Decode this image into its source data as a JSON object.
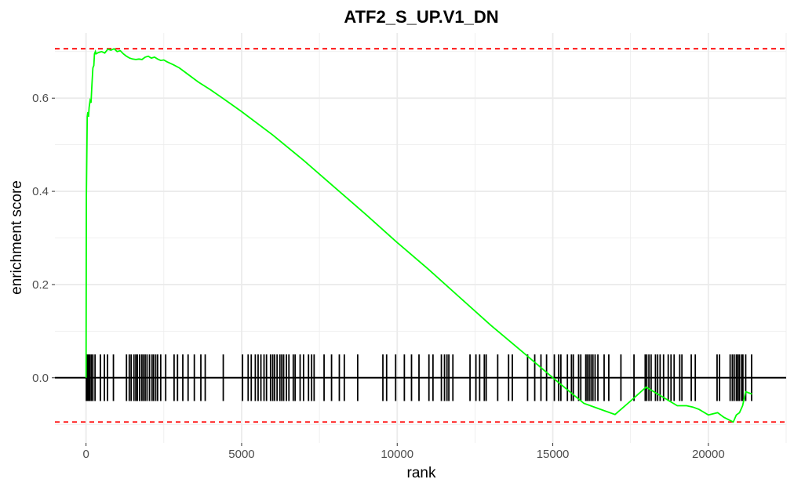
{
  "chart_data": {
    "type": "line",
    "title": "ATF2_S_UP.V1_DN",
    "xlabel": "rank",
    "ylabel": "enrichment score",
    "xlim": [
      -1000,
      22500
    ],
    "ylim": [
      -0.14,
      0.74
    ],
    "x_ticks": [
      0,
      5000,
      10000,
      15000,
      20000
    ],
    "x_tick_labels": [
      "0",
      "5000",
      "10000",
      "15000",
      "20000"
    ],
    "y_ticks": [
      0.0,
      0.2,
      0.4,
      0.6
    ],
    "y_tick_labels": [
      "0.0",
      "0.2",
      "0.4",
      "0.6"
    ],
    "grid": true,
    "colors": {
      "curve": "#00ff00",
      "threshold": "#ff0000",
      "hits": "#000000",
      "grid": "#ebebeb"
    },
    "thresholds": {
      "max_es": 0.706,
      "min_es": -0.095
    },
    "hits_band": [
      -0.05,
      0.05
    ],
    "series": [
      {
        "x": [
          0,
          10,
          40,
          60,
          80,
          100,
          130,
          160,
          190,
          220,
          250,
          270,
          300,
          320,
          400,
          500,
          600,
          700,
          800,
          900,
          1000,
          1100,
          1200,
          1300,
          1400,
          1500,
          1600,
          1700,
          1800,
          1900,
          2000,
          2100,
          2200,
          2300,
          2400,
          2500,
          2600,
          2800,
          3000,
          3300,
          3600,
          4000,
          4500,
          5000,
          6000,
          7000,
          8000,
          9000,
          10000,
          11000,
          12000,
          13000,
          14000,
          15000,
          16000,
          16500,
          17000,
          17500,
          18000,
          18500,
          19000,
          19300,
          19500,
          19700,
          20000,
          20300,
          20500,
          20800,
          20900,
          21000,
          21100,
          21200,
          21400
        ],
        "y": [
          0.0,
          0.39,
          0.56,
          0.57,
          0.56,
          0.58,
          0.595,
          0.59,
          0.63,
          0.665,
          0.67,
          0.695,
          0.7,
          0.695,
          0.698,
          0.7,
          0.697,
          0.705,
          0.703,
          0.706,
          0.7,
          0.702,
          0.695,
          0.69,
          0.686,
          0.684,
          0.683,
          0.684,
          0.683,
          0.688,
          0.69,
          0.686,
          0.688,
          0.684,
          0.681,
          0.682,
          0.678,
          0.672,
          0.665,
          0.65,
          0.635,
          0.618,
          0.595,
          0.571,
          0.521,
          0.466,
          0.408,
          0.35,
          0.29,
          0.233,
          0.173,
          0.113,
          0.057,
          0.0,
          -0.055,
          -0.067,
          -0.079,
          -0.05,
          -0.02,
          -0.04,
          -0.06,
          -0.06,
          -0.063,
          -0.068,
          -0.08,
          -0.075,
          -0.085,
          -0.095,
          -0.08,
          -0.075,
          -0.06,
          -0.03,
          -0.035
        ]
      }
    ],
    "hits": [
      10,
      40,
      80,
      120,
      170,
      220,
      290,
      460,
      590,
      690,
      880,
      1300,
      1390,
      1450,
      1540,
      1600,
      1650,
      1720,
      1790,
      1840,
      1900,
      1960,
      2040,
      2120,
      2170,
      2240,
      2300,
      2400,
      2560,
      2830,
      2940,
      3110,
      3280,
      3480,
      3690,
      3830,
      4410,
      5030,
      5210,
      5310,
      5440,
      5530,
      5620,
      5720,
      5800,
      5930,
      6000,
      6060,
      6140,
      6230,
      6290,
      6350,
      6440,
      6520,
      6660,
      6720,
      6880,
      6990,
      7150,
      7250,
      7330,
      7650,
      7890,
      8140,
      8300,
      8730,
      9540,
      9660,
      9950,
      10230,
      10460,
      10700,
      11020,
      11150,
      11420,
      11520,
      11600,
      11660,
      11790,
      12340,
      12530,
      12650,
      12800,
      12860,
      13230,
      13580,
      13700,
      14190,
      14420,
      14620,
      14800,
      15050,
      15190,
      15260,
      15470,
      15600,
      15660,
      15830,
      15900,
      16060,
      16110,
      16170,
      16230,
      16290,
      16360,
      16450,
      16650,
      16800,
      17190,
      17610,
      17970,
      18020,
      18090,
      18160,
      18300,
      18370,
      18450,
      18560,
      18710,
      18800,
      18900,
      19080,
      19150,
      19450,
      19580,
      20280,
      20360,
      20700,
      20770,
      20830,
      20900,
      20950,
      21000,
      21070,
      21110,
      21200,
      21390
    ]
  }
}
